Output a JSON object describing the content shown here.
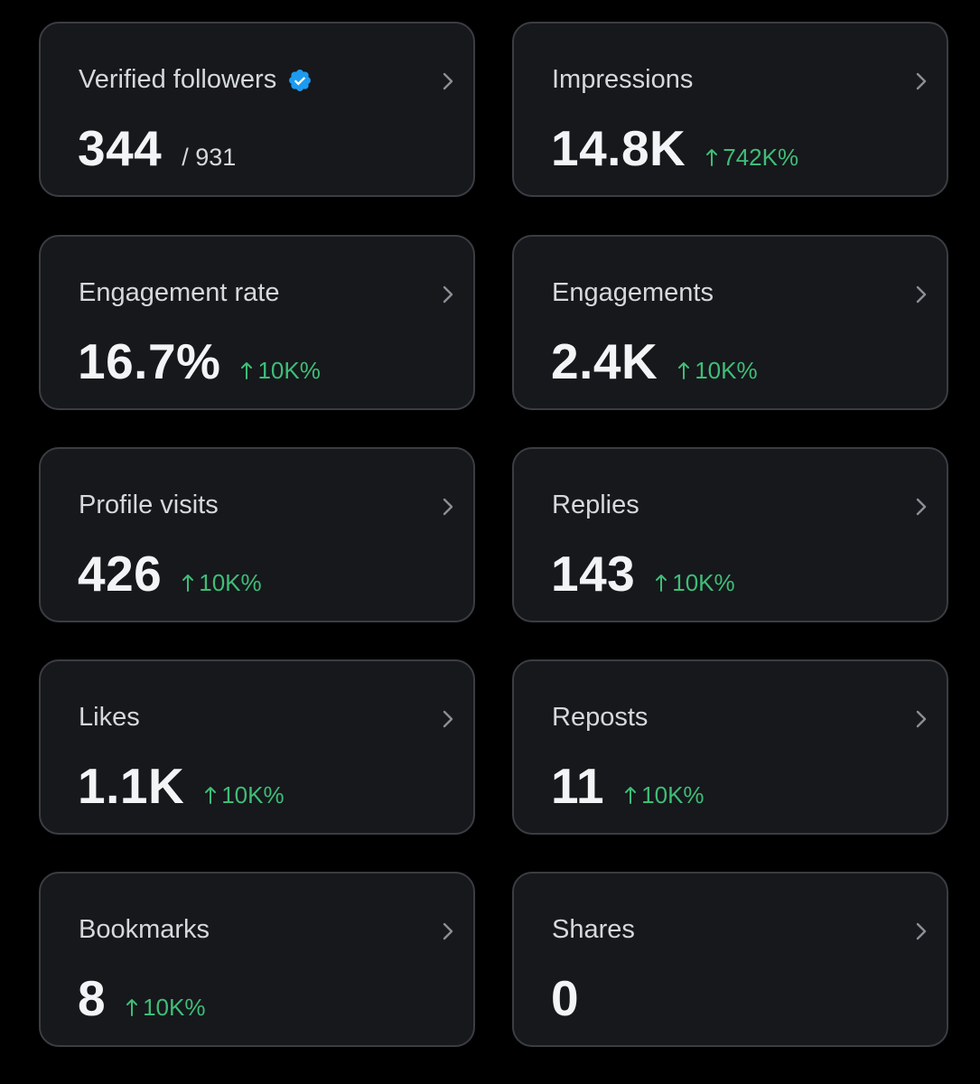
{
  "colors": {
    "background": "#000000",
    "card": "#16181c",
    "border": "#3a3d42",
    "positive": "#3fbd77",
    "verified": "#1d9bf0"
  },
  "cards": {
    "verified_followers": {
      "label": "Verified followers",
      "value": "344",
      "total": "/ 931"
    },
    "impressions": {
      "label": "Impressions",
      "value": "14.8K",
      "change": "742K%"
    },
    "engagement_rate": {
      "label": "Engagement rate",
      "value": "16.7%",
      "change": "10K%"
    },
    "engagements": {
      "label": "Engagements",
      "value": "2.4K",
      "change": "10K%"
    },
    "profile_visits": {
      "label": "Profile visits",
      "value": "426",
      "change": "10K%"
    },
    "replies": {
      "label": "Replies",
      "value": "143",
      "change": "10K%"
    },
    "likes": {
      "label": "Likes",
      "value": "1.1K",
      "change": "10K%"
    },
    "reposts": {
      "label": "Reposts",
      "value": "11",
      "change": "10K%"
    },
    "bookmarks": {
      "label": "Bookmarks",
      "value": "8",
      "change": "10K%"
    },
    "shares": {
      "label": "Shares",
      "value": "0"
    }
  },
  "icons": {
    "verified": "verified-badge-icon",
    "chevron": "chevron-right-icon",
    "arrow": "arrow-up-icon"
  }
}
